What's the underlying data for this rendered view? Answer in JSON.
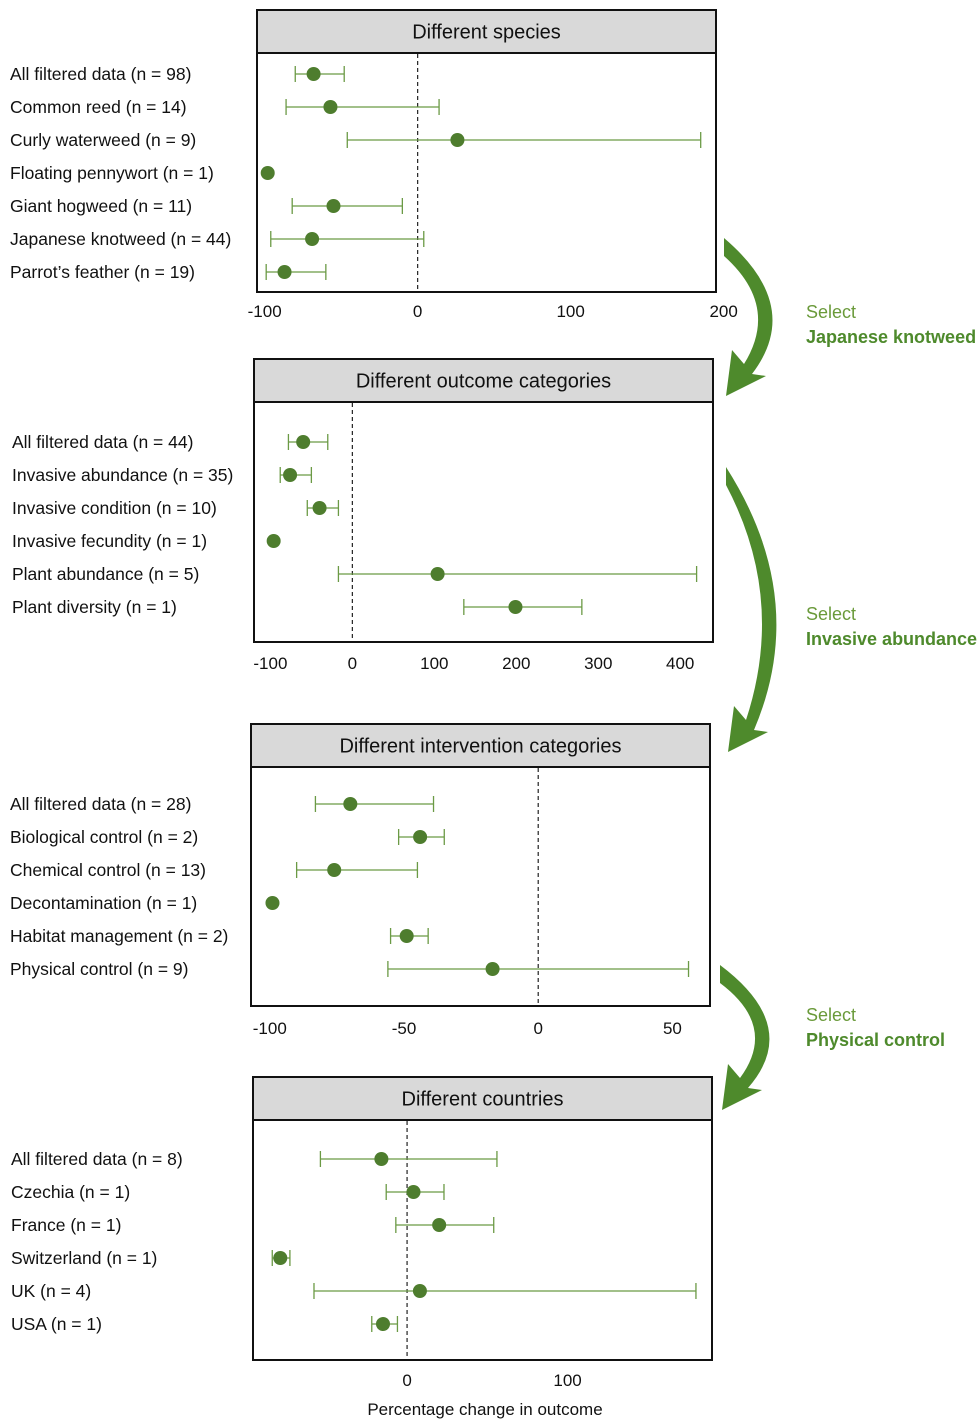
{
  "colors": {
    "marker": "#4e7d2e",
    "whisker": "#6b9a45",
    "arrow": "#4e8a2c",
    "header_fill": "#d9d9d9",
    "frame": "#111111"
  },
  "x_axis_title": "Percentage change in outcome",
  "transitions": [
    {
      "line1": "Select",
      "line2": "Japanese knotweed"
    },
    {
      "line1": "Select",
      "line2": "Invasive abundance"
    },
    {
      "line1": "Select",
      "line2": "Physical control"
    }
  ],
  "chart_data": [
    {
      "type": "forest",
      "title": "Different species",
      "xlim": [
        -105,
        195
      ],
      "ticks": [
        -100,
        0,
        100,
        200
      ],
      "reference_line": 0,
      "rows": [
        {
          "label": "All filtered data (n = 98)",
          "estimate": -68,
          "lower": -80,
          "upper": -48
        },
        {
          "label": "Common reed (n = 14)",
          "estimate": -57,
          "lower": -86,
          "upper": 14
        },
        {
          "label": "Curly waterweed (n = 9)",
          "estimate": 26,
          "lower": -46,
          "upper": 185
        },
        {
          "label": "Floating pennywort (n = 1)",
          "estimate": -98,
          "lower": -98,
          "upper": -98
        },
        {
          "label": "Giant hogweed (n = 11)",
          "estimate": -55,
          "lower": -82,
          "upper": -10
        },
        {
          "label": "Japanese knotweed (n = 44)",
          "estimate": -69,
          "lower": -96,
          "upper": 4
        },
        {
          "label": "Parrot’s feather (n = 19)",
          "estimate": -87,
          "lower": -99,
          "upper": -60
        }
      ]
    },
    {
      "type": "forest",
      "title": "Different outcome categories",
      "xlim": [
        -120,
        440
      ],
      "ticks": [
        -100,
        0,
        100,
        200,
        300,
        400
      ],
      "reference_line": 0,
      "rows": [
        {
          "label": "All filtered data (n = 44)",
          "estimate": -60,
          "lower": -78,
          "upper": -30
        },
        {
          "label": "Invasive abundance (n = 35)",
          "estimate": -76,
          "lower": -88,
          "upper": -50
        },
        {
          "label": "Invasive condition (n = 10)",
          "estimate": -40,
          "lower": -55,
          "upper": -17
        },
        {
          "label": "Invasive fecundity (n = 1)",
          "estimate": -96,
          "lower": -96,
          "upper": -96
        },
        {
          "label": "Plant abundance (n = 5)",
          "estimate": 104,
          "lower": -17,
          "upper": 420
        },
        {
          "label": "Plant diversity (n = 1)",
          "estimate": 199,
          "lower": 136,
          "upper": 280
        }
      ]
    },
    {
      "type": "forest",
      "title": "Different intervention categories",
      "xlim": [
        -107,
        64
      ],
      "ticks": [
        -100,
        -50,
        0,
        50
      ],
      "reference_line": 0,
      "rows": [
        {
          "label": "All filtered data (n = 28)",
          "estimate": -70,
          "lower": -83,
          "upper": -39
        },
        {
          "label": "Biological control (n = 2)",
          "estimate": -44,
          "lower": -52,
          "upper": -35
        },
        {
          "label": "Chemical control (n = 13)",
          "estimate": -76,
          "lower": -90,
          "upper": -45
        },
        {
          "label": "Decontamination (n = 1)",
          "estimate": -99,
          "lower": -99,
          "upper": -99
        },
        {
          "label": "Habitat management (n = 2)",
          "estimate": -49,
          "lower": -55,
          "upper": -41
        },
        {
          "label": "Physical control (n = 9)",
          "estimate": -17,
          "lower": -56,
          "upper": 56
        }
      ]
    },
    {
      "type": "forest",
      "title": "Different countries",
      "xlim": [
        -96,
        190
      ],
      "ticks": [
        0,
        100
      ],
      "reference_line": 0,
      "xlabel": "Percentage change in outcome",
      "rows": [
        {
          "label": "All filtered data (n = 8)",
          "estimate": -16,
          "lower": -54,
          "upper": 56
        },
        {
          "label": "Czechia (n = 1)",
          "estimate": 4,
          "lower": -13,
          "upper": 23
        },
        {
          "label": "France (n = 1)",
          "estimate": 20,
          "lower": -7,
          "upper": 54
        },
        {
          "label": "Switzerland (n = 1)",
          "estimate": -79,
          "lower": -84,
          "upper": -73
        },
        {
          "label": "UK (n = 4)",
          "estimate": 8,
          "lower": -58,
          "upper": 180
        },
        {
          "label": "USA (n = 1)",
          "estimate": -15,
          "lower": -22,
          "upper": -6
        }
      ]
    }
  ]
}
